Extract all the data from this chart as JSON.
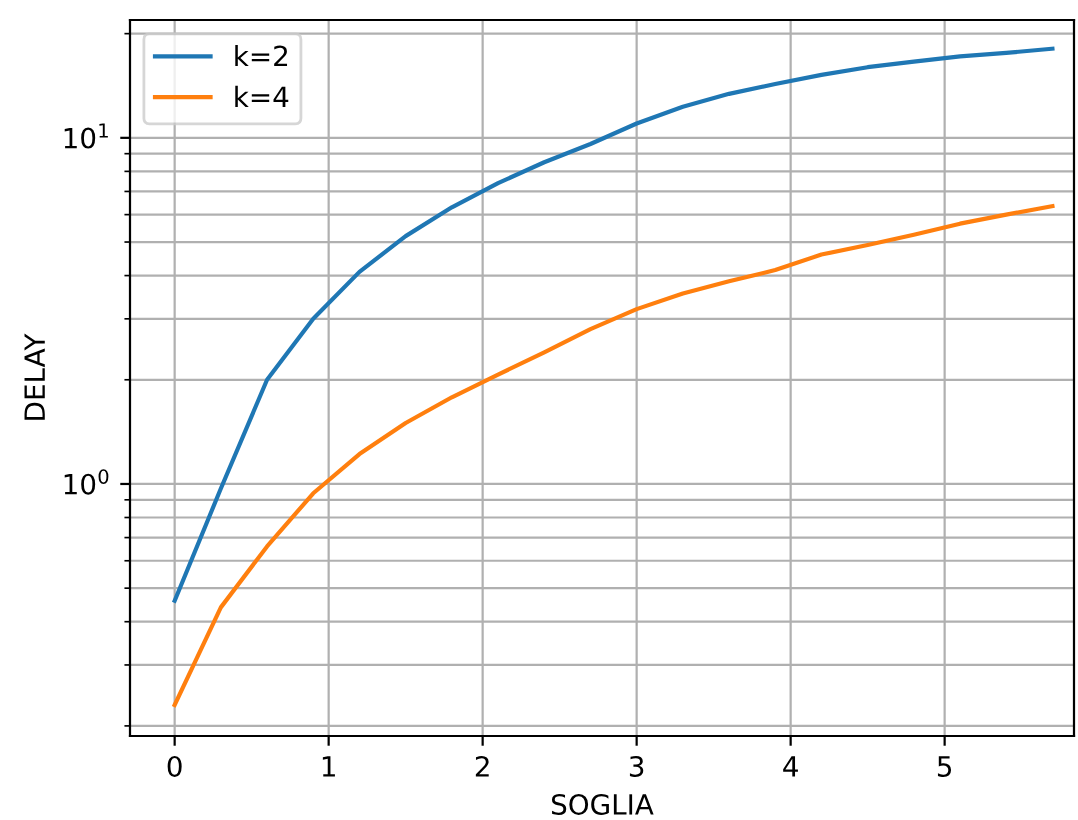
{
  "chart_data": {
    "type": "line",
    "xlabel": "SOGLIA",
    "ylabel": "DELAY",
    "log": "y",
    "grid": true,
    "legend": "top left",
    "marker": "none",
    "line_style": "solid",
    "x": [
      0,
      0.3,
      0.6,
      0.9,
      1.2,
      1.5,
      1.8,
      2.1,
      2.4,
      2.7,
      3.0,
      3.3,
      3.6,
      3.9,
      4.2,
      4.5,
      4.8,
      5.1,
      5.4,
      5.7
    ],
    "xlim": [
      -0.29,
      5.84
    ],
    "xticks": [
      0,
      1,
      2,
      3,
      4,
      5
    ],
    "ylim": [
      0.187,
      21.9
    ],
    "yticks": [
      {
        "value": 1,
        "label": "10$^{0}$"
      },
      {
        "value": 10,
        "label": "10$^{1}$"
      }
    ],
    "series": [
      {
        "name": "k=2",
        "color": "#1f77b4",
        "values": [
          0.46,
          0.97,
          2.0,
          3.0,
          4.1,
          5.2,
          6.3,
          7.4,
          8.5,
          9.6,
          11.0,
          12.3,
          13.4,
          14.3,
          15.2,
          16.0,
          16.6,
          17.2,
          17.6,
          18.1
        ]
      },
      {
        "name": "k=4",
        "color": "#ff7f0e",
        "values": [
          0.23,
          0.44,
          0.66,
          0.94,
          1.22,
          1.5,
          1.78,
          2.07,
          2.4,
          2.8,
          3.2,
          3.55,
          3.85,
          4.15,
          4.6,
          4.9,
          5.25,
          5.65,
          6.0,
          6.35
        ]
      }
    ]
  }
}
